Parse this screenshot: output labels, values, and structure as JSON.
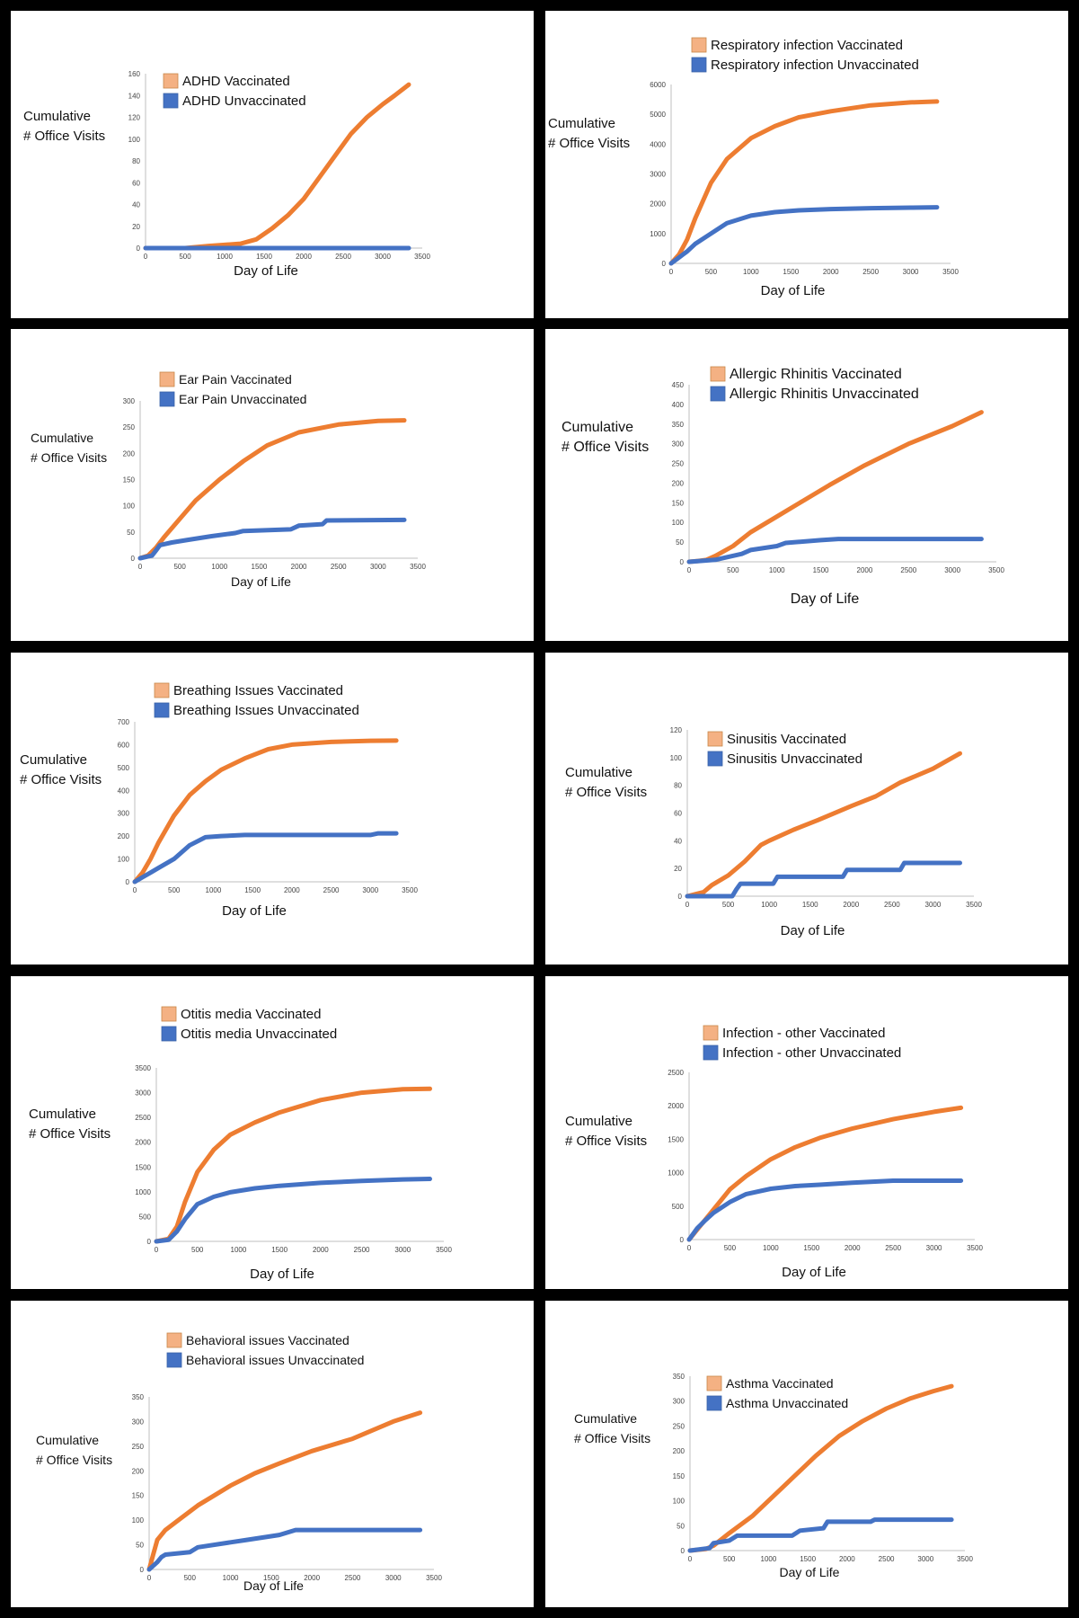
{
  "colors": {
    "vaccinated": "#ED7D31",
    "unvaccinated": "#4472C4",
    "legend_vaccinated": "#F4B183"
  },
  "chart_data": [
    {
      "type": "line",
      "ylabel": [
        "Cumulative",
        "# Office Visits"
      ],
      "xlabel": "Day of Life",
      "xlim": [
        0,
        3500
      ],
      "ylim": [
        0,
        160
      ],
      "xticks": [
        0,
        500,
        1000,
        1500,
        2000,
        2500,
        3000,
        3500
      ],
      "yticks": [
        0,
        20,
        40,
        60,
        80,
        100,
        120,
        140,
        160
      ],
      "series": [
        {
          "name": "ADHD Vaccinated",
          "x": [
            0,
            500,
            800,
            1000,
            1200,
            1400,
            1600,
            1800,
            2000,
            2200,
            2400,
            2600,
            2800,
            3000,
            3150,
            3330
          ],
          "y": [
            0,
            0,
            2,
            3,
            4,
            8,
            18,
            30,
            45,
            65,
            85,
            105,
            120,
            132,
            140,
            150
          ]
        },
        {
          "name": "ADHD Unvaccinated",
          "x": [
            0,
            3330
          ],
          "y": [
            0,
            0
          ]
        }
      ]
    },
    {
      "type": "line",
      "ylabel": [
        "Cumulative",
        "# Office Visits"
      ],
      "xlabel": "Day of Life",
      "xlim": [
        0,
        3500
      ],
      "ylim": [
        0,
        6000
      ],
      "xticks": [
        0,
        500,
        1000,
        1500,
        2000,
        2500,
        3000,
        3500
      ],
      "yticks": [
        0,
        1000,
        2000,
        3000,
        4000,
        5000,
        6000
      ],
      "series": [
        {
          "name": "Respiratory infection Vaccinated",
          "x": [
            0,
            100,
            200,
            300,
            400,
            500,
            700,
            1000,
            1300,
            1600,
            2000,
            2500,
            3000,
            3330
          ],
          "y": [
            0,
            300,
            800,
            1500,
            2100,
            2700,
            3500,
            4200,
            4600,
            4900,
            5100,
            5300,
            5400,
            5430
          ]
        },
        {
          "name": "Respiratory infection Unvaccinated",
          "x": [
            0,
            100,
            200,
            300,
            500,
            700,
            1000,
            1300,
            1600,
            2000,
            2500,
            3000,
            3330
          ],
          "y": [
            0,
            200,
            400,
            650,
            1000,
            1350,
            1600,
            1720,
            1780,
            1820,
            1850,
            1870,
            1880
          ]
        }
      ]
    },
    {
      "type": "line",
      "ylabel": [
        "Cumulative",
        "# Office Visits"
      ],
      "xlabel": "Day of Life",
      "xlim": [
        0,
        3500
      ],
      "ylim": [
        0,
        300
      ],
      "xticks": [
        0,
        500,
        1000,
        1500,
        2000,
        2500,
        3000,
        3500
      ],
      "yticks": [
        0,
        50,
        100,
        150,
        200,
        250,
        300
      ],
      "series": [
        {
          "name": "Ear Pain Vaccinated",
          "x": [
            0,
            100,
            200,
            300,
            500,
            700,
            1000,
            1300,
            1600,
            2000,
            2500,
            3000,
            3330
          ],
          "y": [
            0,
            5,
            20,
            40,
            75,
            110,
            150,
            185,
            215,
            240,
            255,
            262,
            263
          ]
        },
        {
          "name": "Ear Pain Unvaccinated",
          "x": [
            0,
            150,
            200,
            250,
            400,
            600,
            900,
            1200,
            1300,
            1900,
            2000,
            2300,
            2350,
            3330
          ],
          "y": [
            0,
            5,
            15,
            25,
            30,
            35,
            42,
            48,
            52,
            55,
            62,
            65,
            72,
            73
          ]
        }
      ]
    },
    {
      "type": "line",
      "ylabel": [
        "Cumulative",
        "# Office Visits"
      ],
      "xlabel": "Day of Life",
      "xlim": [
        0,
        3500
      ],
      "ylim": [
        0,
        450
      ],
      "xticks": [
        0,
        500,
        1000,
        1500,
        2000,
        2500,
        3000,
        3500
      ],
      "yticks": [
        0,
        50,
        100,
        150,
        200,
        250,
        300,
        350,
        400,
        450
      ],
      "series": [
        {
          "name": "Allergic Rhinitis Vaccinated",
          "x": [
            0,
            100,
            200,
            300,
            500,
            700,
            1000,
            1300,
            1600,
            2000,
            2500,
            3000,
            3330
          ],
          "y": [
            0,
            2,
            5,
            15,
            40,
            75,
            115,
            155,
            195,
            245,
            300,
            345,
            380
          ]
        },
        {
          "name": "Allergic Rhinitis Unvaccinated",
          "x": [
            0,
            300,
            400,
            600,
            700,
            1000,
            1100,
            1500,
            1700,
            3330
          ],
          "y": [
            0,
            5,
            10,
            20,
            30,
            40,
            48,
            55,
            58,
            58
          ]
        }
      ]
    },
    {
      "type": "line",
      "ylabel": [
        "Cumulative",
        "# Office Visits"
      ],
      "xlabel": "Day of Life",
      "xlim": [
        0,
        3500
      ],
      "ylim": [
        0,
        700
      ],
      "xticks": [
        0,
        500,
        1000,
        1500,
        2000,
        2500,
        3000,
        3500
      ],
      "yticks": [
        0,
        100,
        200,
        300,
        400,
        500,
        600,
        700
      ],
      "series": [
        {
          "name": "Breathing Issues Vaccinated",
          "x": [
            0,
            100,
            200,
            300,
            500,
            700,
            900,
            1100,
            1400,
            1700,
            2000,
            2500,
            3000,
            3330
          ],
          "y": [
            0,
            40,
            100,
            170,
            290,
            380,
            440,
            490,
            540,
            580,
            600,
            612,
            617,
            618
          ]
        },
        {
          "name": "Breathing Issues Unvaccinated",
          "x": [
            0,
            100,
            200,
            300,
            500,
            700,
            900,
            1100,
            1400,
            1800,
            2500,
            3000,
            3100,
            3330
          ],
          "y": [
            0,
            20,
            40,
            60,
            100,
            160,
            195,
            200,
            205,
            205,
            205,
            205,
            212,
            212
          ]
        }
      ]
    },
    {
      "type": "line",
      "ylabel": [
        "Cumulative",
        "# Office Visits"
      ],
      "xlabel": "Day of Life",
      "xlim": [
        0,
        3500
      ],
      "ylim": [
        0,
        120
      ],
      "xticks": [
        0,
        500,
        1000,
        1500,
        2000,
        2500,
        3000,
        3500
      ],
      "yticks": [
        0,
        20,
        40,
        60,
        80,
        100,
        120
      ],
      "series": [
        {
          "name": "Sinusitis Vaccinated",
          "x": [
            0,
            200,
            300,
            500,
            700,
            900,
            1000,
            1300,
            1600,
            2000,
            2300,
            2600,
            3000,
            3330
          ],
          "y": [
            0,
            3,
            8,
            15,
            25,
            37,
            40,
            48,
            55,
            65,
            72,
            82,
            92,
            103
          ]
        },
        {
          "name": "Sinusitis Unvaccinated",
          "x": [
            0,
            300,
            550,
            600,
            650,
            1050,
            1100,
            1900,
            1950,
            2600,
            2650,
            3330
          ],
          "y": [
            0,
            0,
            0,
            5,
            9,
            9,
            14,
            14,
            19,
            19,
            24,
            24
          ]
        }
      ]
    },
    {
      "type": "line",
      "ylabel": [
        "Cumulative",
        "# Office Visits"
      ],
      "xlabel": "Day of Life",
      "xlim": [
        0,
        3500
      ],
      "ylim": [
        0,
        3500
      ],
      "xticks": [
        0,
        500,
        1000,
        1500,
        2000,
        2500,
        3000,
        3500
      ],
      "yticks": [
        0,
        500,
        1000,
        1500,
        2000,
        2500,
        3000,
        3500
      ],
      "series": [
        {
          "name": "Otitis media Vaccinated",
          "x": [
            0,
            150,
            250,
            350,
            500,
            700,
            900,
            1200,
            1500,
            2000,
            2500,
            3000,
            3330
          ],
          "y": [
            0,
            50,
            300,
            800,
            1400,
            1850,
            2150,
            2400,
            2600,
            2850,
            3000,
            3070,
            3080
          ]
        },
        {
          "name": "Otitis media Unvaccinated",
          "x": [
            0,
            150,
            250,
            350,
            500,
            700,
            900,
            1200,
            1500,
            2000,
            2500,
            3000,
            3330
          ],
          "y": [
            0,
            30,
            200,
            450,
            750,
            900,
            990,
            1070,
            1120,
            1180,
            1220,
            1250,
            1260
          ]
        }
      ]
    },
    {
      "type": "line",
      "ylabel": [
        "Cumulative",
        "# Office Visits"
      ],
      "xlabel": "Day of Life",
      "xlim": [
        0,
        3500
      ],
      "ylim": [
        0,
        2500
      ],
      "xticks": [
        0,
        500,
        1000,
        1500,
        2000,
        2500,
        3000,
        3500
      ],
      "yticks": [
        0,
        500,
        1000,
        1500,
        2000,
        2500
      ],
      "series": [
        {
          "name": "Infection - other Vaccinated",
          "x": [
            0,
            100,
            200,
            300,
            500,
            700,
            1000,
            1300,
            1600,
            2000,
            2500,
            3000,
            3330
          ],
          "y": [
            0,
            150,
            300,
            450,
            750,
            950,
            1200,
            1380,
            1520,
            1660,
            1800,
            1910,
            1970
          ]
        },
        {
          "name": "Infection - other Unvaccinated",
          "x": [
            0,
            100,
            200,
            300,
            500,
            700,
            1000,
            1300,
            1600,
            2000,
            2500,
            3000,
            3330
          ],
          "y": [
            0,
            170,
            290,
            400,
            560,
            680,
            760,
            800,
            820,
            850,
            880,
            880,
            880
          ]
        }
      ]
    },
    {
      "type": "line",
      "ylabel": [
        "Cumulative",
        "# Office Visits"
      ],
      "xlabel": "Day of Life",
      "xlim": [
        0,
        3500
      ],
      "ylim": [
        0,
        350
      ],
      "xticks": [
        0,
        500,
        1000,
        1500,
        2000,
        2500,
        3000,
        3500
      ],
      "yticks": [
        0,
        50,
        100,
        150,
        200,
        250,
        300,
        350
      ],
      "series": [
        {
          "name": "Behavioral issues Vaccinated",
          "x": [
            0,
            50,
            100,
            200,
            400,
            600,
            800,
            1000,
            1300,
            1600,
            2000,
            2500,
            3000,
            3330
          ],
          "y": [
            0,
            30,
            60,
            80,
            105,
            130,
            150,
            170,
            195,
            215,
            240,
            265,
            300,
            318
          ]
        },
        {
          "name": "Behavioral issues Unvaccinated",
          "x": [
            0,
            100,
            150,
            200,
            500,
            600,
            1000,
            1200,
            1600,
            1800,
            3330
          ],
          "y": [
            0,
            15,
            25,
            30,
            35,
            45,
            55,
            60,
            70,
            80,
            80
          ]
        }
      ]
    },
    {
      "type": "line",
      "ylabel": [
        "Cumulative",
        "# Office Visits"
      ],
      "xlabel": "Day of Life",
      "xlim": [
        0,
        3500
      ],
      "ylim": [
        0,
        350
      ],
      "xticks": [
        0,
        500,
        1000,
        1500,
        2000,
        2500,
        3000,
        3500
      ],
      "yticks": [
        0,
        50,
        100,
        150,
        200,
        250,
        300,
        350
      ],
      "series": [
        {
          "name": "Asthma Vaccinated",
          "x": [
            0,
            200,
            300,
            500,
            800,
            1000,
            1300,
            1600,
            1900,
            2200,
            2500,
            2800,
            3100,
            3330
          ],
          "y": [
            0,
            3,
            10,
            35,
            70,
            100,
            145,
            190,
            230,
            260,
            285,
            305,
            320,
            330
          ]
        },
        {
          "name": "Asthma Unvaccinated",
          "x": [
            0,
            250,
            300,
            500,
            600,
            1300,
            1400,
            1700,
            1750,
            2300,
            2350,
            3330
          ],
          "y": [
            0,
            5,
            15,
            20,
            30,
            30,
            40,
            45,
            58,
            58,
            62,
            62
          ]
        }
      ]
    }
  ]
}
